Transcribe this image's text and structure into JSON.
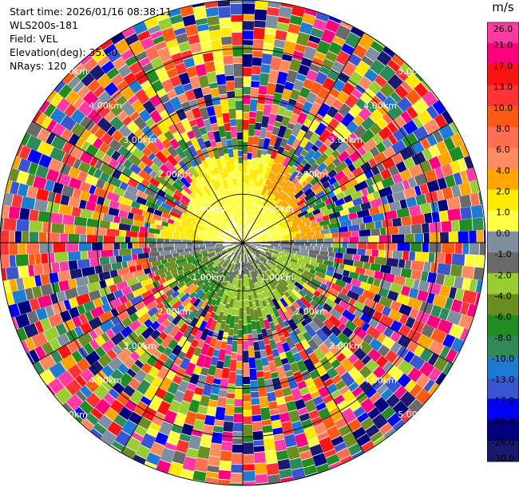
{
  "header": {
    "start_time": "Start time: 2026/01/16 08:38:11",
    "instrument": "WLS200s-181",
    "field": "Field: VEL",
    "elevation": "Elevation(deg): 35.00",
    "nrays": "NRays: 120"
  },
  "chart_data": {
    "type": "heatmap",
    "projection": "polar-ppi",
    "nrays": 120,
    "range_rings_km": [
      1.0,
      2.0,
      3.0,
      4.0,
      5.0
    ],
    "ring_labels": [
      "1.00km",
      "2.00km",
      "3.00km",
      "4.00km",
      "5.00km"
    ],
    "max_range_km": 5.0,
    "spokes_deg": [
      0,
      30,
      60,
      90,
      120,
      150,
      180,
      210,
      240,
      270,
      300,
      330
    ],
    "colorbar": {
      "unit": "m/s",
      "ticks": [
        26.0,
        21.0,
        17.0,
        13.0,
        10.0,
        8.0,
        6.0,
        4.0,
        2.0,
        1.0,
        0.0,
        -1.0,
        -2.0,
        -4.0,
        -6.0,
        -8.0,
        -10.0,
        -13.0,
        -17.0,
        -21.0,
        -26.0,
        -30.0
      ],
      "tick_labels": [
        "26.0",
        "21.0",
        "17.0",
        "13.0",
        "10.0",
        "8.0",
        "6.0",
        "4.0",
        "2.0",
        "1.0",
        "0.0",
        "-1.0",
        "-2.0",
        "-4.0",
        "-6.0",
        "-8.0",
        "-10.0",
        "-13.0",
        "-17.0",
        "-21.0",
        "-26.0",
        "-30.0"
      ],
      "colors": [
        "#ff3aa2",
        "#ff007e",
        "#ff1212",
        "#ff3333",
        "#ff5a14",
        "#ff6e50",
        "#ff8a61",
        "#ffa600",
        "#ffea00",
        "#ffff44",
        "#7f8fa0",
        "#6a6a6a",
        "#9acd32",
        "#6b8e23",
        "#228b22",
        "#2e8b57",
        "#1e7bd0",
        "#3a55d0",
        "#0000ff",
        "#00007f",
        "#191970"
      ]
    },
    "valid_region": {
      "inner_range_km": 1.9,
      "approaching_sector_deg": [
        90,
        270
      ],
      "receding_sector_deg": [
        270,
        90
      ]
    }
  }
}
